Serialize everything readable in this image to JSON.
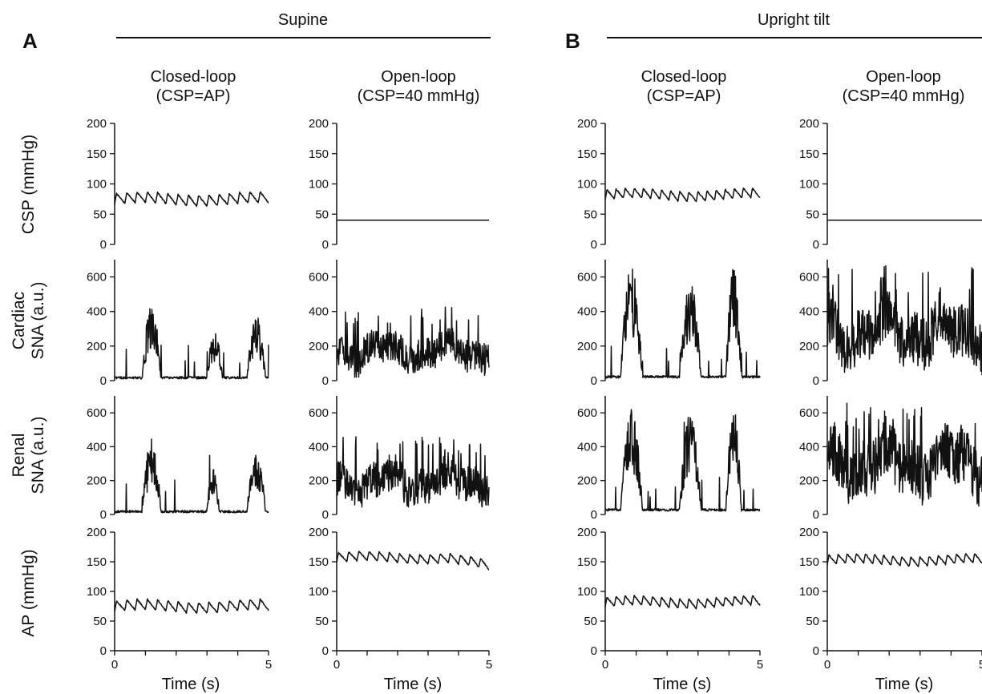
{
  "figure": {
    "panel_a": {
      "letter": "A",
      "condition": "Supine"
    },
    "panel_b": {
      "letter": "B",
      "condition": "Upright tilt"
    },
    "column_titles": [
      {
        "line1": "Closed-loop",
        "line2": "(CSP=AP)"
      },
      {
        "line1": "Open-loop",
        "line2": "(CSP=40 mmHg)"
      },
      {
        "line1": "Closed-loop",
        "line2": "(CSP=AP)"
      },
      {
        "line1": "Open-loop",
        "line2": "(CSP=40 mmHg)"
      }
    ],
    "row_labels": [
      {
        "line1": "CSP (mmHg)",
        "line2": ""
      },
      {
        "line1": "Cardiac",
        "line2": "SNA (a.u.)"
      },
      {
        "line1": "Renal",
        "line2": "SNA (a.u.)"
      },
      {
        "line1": "AP (mmHg)",
        "line2": ""
      }
    ],
    "x_label": "Time (s)"
  },
  "chart_data": {
    "type": "line",
    "x_unit": "s",
    "x_range": [
      0,
      5
    ],
    "x_ticks": [
      0,
      5
    ],
    "rows": [
      {
        "variable": "CSP",
        "ylim": [
          0,
          200
        ],
        "yticks": [
          0,
          50,
          100,
          150,
          200
        ]
      },
      {
        "variable": "Cardiac SNA",
        "ylim": [
          0,
          700
        ],
        "yticks": [
          0,
          200,
          400,
          600
        ]
      },
      {
        "variable": "Renal SNA",
        "ylim": [
          0,
          700
        ],
        "yticks": [
          0,
          200,
          400,
          600
        ]
      },
      {
        "variable": "AP",
        "ylim": [
          0,
          200
        ],
        "yticks": [
          0,
          50,
          100,
          150,
          200
        ]
      }
    ],
    "columns": [
      {
        "condition": "Supine",
        "mode": "Closed-loop",
        "csp": {
          "kind": "pulsatile",
          "mean": 75,
          "amplitude": 9,
          "beats": 15
        },
        "cardiac_sna": {
          "kind": "bursts",
          "baseline": 10,
          "bursts": [
            {
              "start": 0.9,
              "end": 1.5,
              "peak": 430
            },
            {
              "start": 3.0,
              "end": 3.5,
              "peak": 270
            },
            {
              "start": 4.3,
              "end": 4.9,
              "peak": 360
            }
          ]
        },
        "renal_sna": {
          "kind": "bursts",
          "baseline": 10,
          "bursts": [
            {
              "start": 0.9,
              "end": 1.5,
              "peak": 430
            },
            {
              "start": 3.0,
              "end": 3.4,
              "peak": 260
            },
            {
              "start": 4.3,
              "end": 4.9,
              "peak": 350
            }
          ]
        },
        "ap": {
          "kind": "pulsatile",
          "mean": 75,
          "amplitude": 9,
          "beats": 15
        }
      },
      {
        "condition": "Supine",
        "mode": "Open-loop",
        "csp": {
          "kind": "constant",
          "value": 40
        },
        "cardiac_sna": {
          "kind": "tonic",
          "mean": 170,
          "range": [
            20,
            430
          ]
        },
        "renal_sna": {
          "kind": "tonic",
          "mean": 190,
          "range": [
            20,
            460
          ]
        },
        "ap": {
          "kind": "pulsatile",
          "mean": 157,
          "amplitude": 8,
          "beats": 15,
          "end_value": 142
        }
      },
      {
        "condition": "Upright tilt",
        "mode": "Closed-loop",
        "csp": {
          "kind": "pulsatile",
          "mean": 82,
          "amplitude": 8,
          "beats": 17
        },
        "cardiac_sna": {
          "kind": "bursts",
          "baseline": 15,
          "bursts": [
            {
              "start": 0.5,
              "end": 1.2,
              "peak": 650
            },
            {
              "start": 2.4,
              "end": 3.1,
              "peak": 560
            },
            {
              "start": 3.9,
              "end": 4.4,
              "peak": 640
            }
          ]
        },
        "renal_sna": {
          "kind": "bursts",
          "baseline": 20,
          "bursts": [
            {
              "start": 0.5,
              "end": 1.2,
              "peak": 600
            },
            {
              "start": 2.4,
              "end": 3.1,
              "peak": 570
            },
            {
              "start": 3.9,
              "end": 4.4,
              "peak": 610
            }
          ]
        },
        "ap": {
          "kind": "pulsatile",
          "mean": 82,
          "amplitude": 8,
          "beats": 17
        }
      },
      {
        "condition": "Upright tilt",
        "mode": "Open-loop",
        "csp": {
          "kind": "constant",
          "value": 40
        },
        "cardiac_sna": {
          "kind": "tonic",
          "mean": 280,
          "range": [
            20,
            670
          ]
        },
        "renal_sna": {
          "kind": "tonic",
          "mean": 300,
          "range": [
            30,
            660
          ]
        },
        "ap": {
          "kind": "pulsatile",
          "mean": 153,
          "amplitude": 8,
          "beats": 17
        }
      }
    ]
  }
}
